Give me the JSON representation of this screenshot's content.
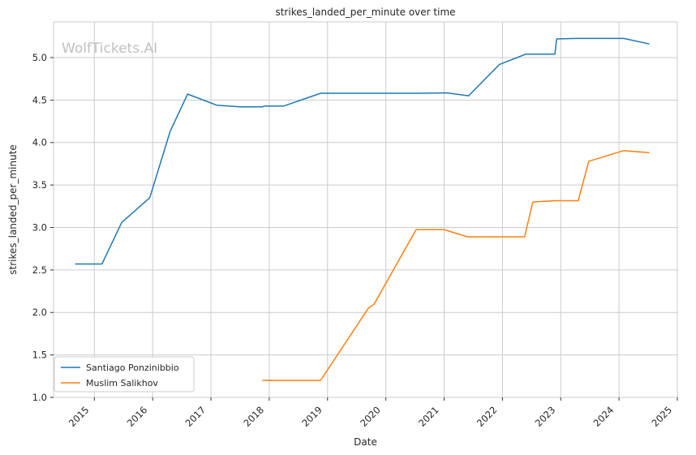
{
  "chart_data": {
    "type": "line",
    "title": "strikes_landed_per_minute over time",
    "xlabel": "Date",
    "ylabel": "strikes_landed_per_minute",
    "watermark": "WolfTickets.AI",
    "xlim": [
      2014.3,
      2025.0
    ],
    "ylim": [
      1.0,
      5.42
    ],
    "x_ticks": [
      2015,
      2016,
      2017,
      2018,
      2019,
      2020,
      2021,
      2022,
      2023,
      2024,
      2025
    ],
    "y_ticks": [
      1.0,
      1.5,
      2.0,
      2.5,
      3.0,
      3.5,
      4.0,
      4.5,
      5.0
    ],
    "grid": true,
    "legend_position": "lower-left",
    "series": [
      {
        "name": "Santiago Ponzinibbio",
        "color": "#1f77b4",
        "x": [
          2014.67,
          2015.13,
          2015.47,
          2015.95,
          2016.3,
          2016.6,
          2017.1,
          2017.5,
          2017.88,
          2017.92,
          2018.25,
          2018.88,
          2019.5,
          2020.0,
          2020.55,
          2021.05,
          2021.42,
          2021.95,
          2022.4,
          2022.9,
          2022.93,
          2023.25,
          2023.7,
          2024.08,
          2024.52
        ],
        "values": [
          2.57,
          2.57,
          3.06,
          3.35,
          4.13,
          4.57,
          4.44,
          4.42,
          4.42,
          4.43,
          4.43,
          4.58,
          4.58,
          4.58,
          4.58,
          4.585,
          4.55,
          4.92,
          5.04,
          5.04,
          5.22,
          5.225,
          5.225,
          5.225,
          5.16
        ]
      },
      {
        "name": "Muslim Salikhov",
        "color": "#ff7f0e",
        "x": [
          2017.88,
          2018.25,
          2018.88,
          2019.7,
          2019.8,
          2020.52,
          2021.0,
          2021.4,
          2021.95,
          2022.38,
          2022.52,
          2022.88,
          2023.3,
          2023.48,
          2024.08,
          2024.52
        ],
        "values": [
          1.2,
          1.2,
          1.2,
          2.05,
          2.1,
          2.975,
          2.975,
          2.89,
          2.89,
          2.89,
          3.3,
          3.315,
          3.315,
          3.78,
          3.905,
          3.88
        ]
      }
    ]
  }
}
